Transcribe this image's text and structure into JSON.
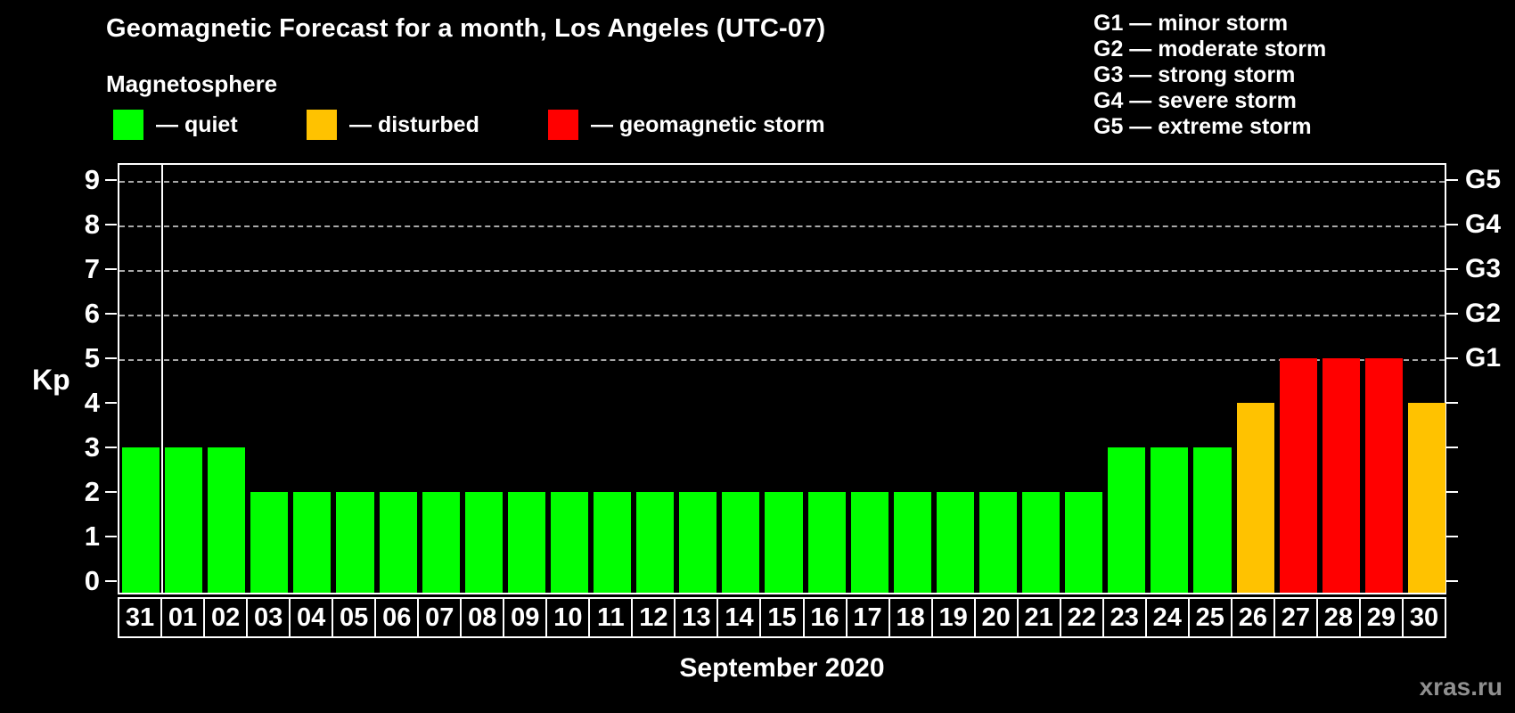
{
  "title": "Geomagnetic Forecast for a month, Los Angeles (UTC-07)",
  "subtitle": "Magnetosphere",
  "legend": {
    "items": [
      {
        "name": "quiet",
        "label": "— quiet",
        "color": "#00ff00"
      },
      {
        "name": "disturbed",
        "label": "— disturbed",
        "color": "#ffc200"
      },
      {
        "name": "storm",
        "label": "— geomagnetic storm",
        "color": "#ff0000"
      }
    ]
  },
  "g_scale_legend": [
    "G1 — minor storm",
    "G2 — moderate storm",
    "G3 — strong storm",
    "G4 — severe storm",
    "G5 — extreme storm"
  ],
  "watermark": "xras.ru",
  "chart_data": {
    "type": "bar",
    "title": "Geomagnetic Forecast for a month, Los Angeles (UTC-07)",
    "xlabel": "September 2020",
    "ylabel": "Kp",
    "ylim": [
      0,
      9.7
    ],
    "grid": "dashed horizontal lines at Kp 5-9 only",
    "y_ticks": [
      0,
      1,
      2,
      3,
      4,
      5,
      6,
      7,
      8,
      9
    ],
    "g_levels": [
      {
        "kp": 5,
        "g": "G1"
      },
      {
        "kp": 6,
        "g": "G2"
      },
      {
        "kp": 7,
        "g": "G3"
      },
      {
        "kp": 8,
        "g": "G4"
      },
      {
        "kp": 9,
        "g": "G5"
      }
    ],
    "categories": [
      "31",
      "01",
      "02",
      "03",
      "04",
      "05",
      "06",
      "07",
      "08",
      "09",
      "10",
      "11",
      "12",
      "13",
      "14",
      "15",
      "16",
      "17",
      "18",
      "19",
      "20",
      "21",
      "22",
      "23",
      "24",
      "25",
      "26",
      "27",
      "28",
      "29",
      "30"
    ],
    "values": [
      3,
      3,
      3,
      2,
      2,
      2,
      2,
      2,
      2,
      2,
      2,
      2,
      2,
      2,
      2,
      2,
      2,
      2,
      2,
      2,
      2,
      2,
      2,
      3,
      3,
      3,
      4,
      5,
      5,
      5,
      4
    ],
    "separator_after_category": "31",
    "color_rule": {
      "quiet_max_kp": 3,
      "disturbed_kp": 4,
      "storm_min_kp": 5
    }
  },
  "colors": {
    "quiet": "#00ff00",
    "disturbed": "#ffc200",
    "storm": "#ff0000",
    "axis": "#ffffff",
    "grid": "#a8a8a8",
    "background": "#000000",
    "watermark": "#8f8f8f"
  }
}
